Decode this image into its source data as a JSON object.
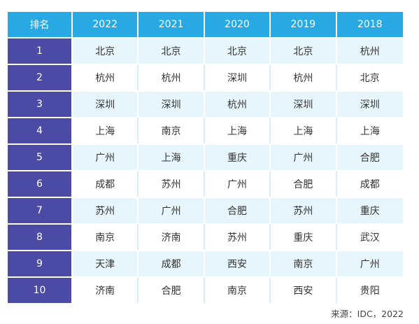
{
  "table": {
    "headers": [
      "排名",
      "2022",
      "2021",
      "2020",
      "2019",
      "2018"
    ],
    "rows": [
      {
        "rank": "1",
        "cities": [
          "北京",
          "北京",
          "北京",
          "北京",
          "杭州"
        ]
      },
      {
        "rank": "2",
        "cities": [
          "杭州",
          "杭州",
          "深圳",
          "杭州",
          "北京"
        ]
      },
      {
        "rank": "3",
        "cities": [
          "深圳",
          "深圳",
          "杭州",
          "深圳",
          "深圳"
        ]
      },
      {
        "rank": "4",
        "cities": [
          "上海",
          "南京",
          "上海",
          "上海",
          "上海"
        ]
      },
      {
        "rank": "5",
        "cities": [
          "广州",
          "上海",
          "重庆",
          "广州",
          "合肥"
        ]
      },
      {
        "rank": "6",
        "cities": [
          "成都",
          "苏州",
          "广州",
          "合肥",
          "成都"
        ]
      },
      {
        "rank": "7",
        "cities": [
          "苏州",
          "广州",
          "合肥",
          "苏州",
          "重庆"
        ]
      },
      {
        "rank": "8",
        "cities": [
          "南京",
          "济南",
          "苏州",
          "重庆",
          "武汉"
        ]
      },
      {
        "rank": "9",
        "cities": [
          "天津",
          "成都",
          "西安",
          "南京",
          "广州"
        ]
      },
      {
        "rank": "10",
        "cities": [
          "济南",
          "合肥",
          "南京",
          "西安",
          "贵阳"
        ]
      }
    ]
  },
  "source": "来源：IDC，2022",
  "colors": {
    "header_bg": "#29a9e3",
    "rank_bg": "#4b4aa5",
    "stripe_bg": "#e7f5fc"
  }
}
